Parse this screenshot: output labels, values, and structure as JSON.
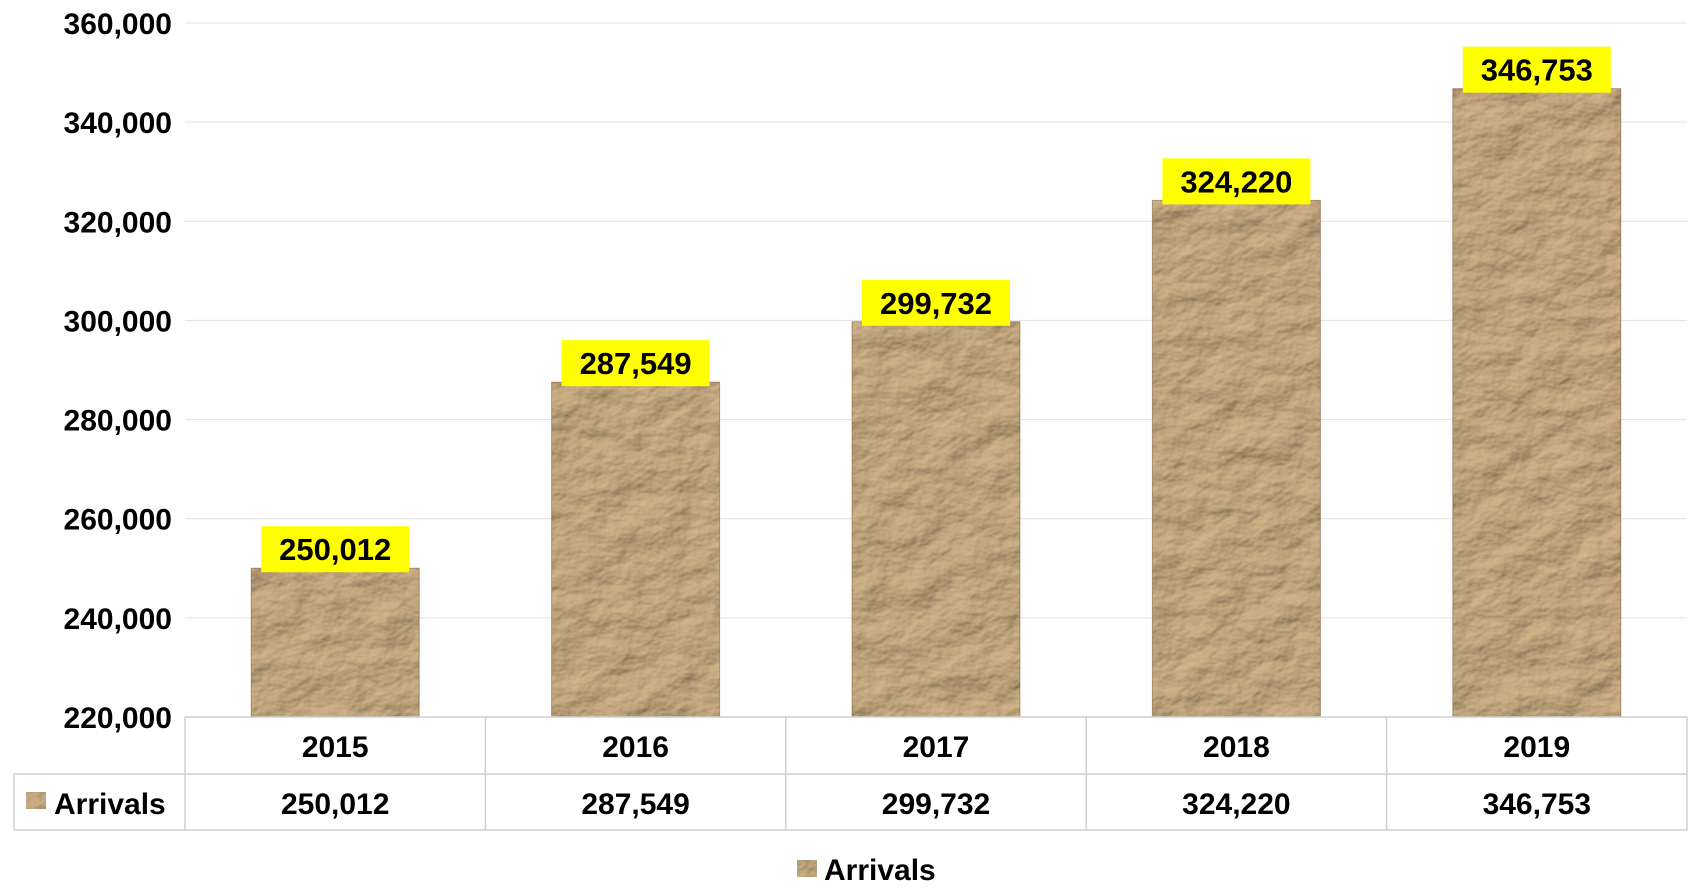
{
  "chart_data": {
    "type": "bar",
    "categories": [
      "2015",
      "2016",
      "2017",
      "2018",
      "2019"
    ],
    "series": [
      {
        "name": "Arrivals",
        "values": [
          250012,
          287549,
          299732,
          324220,
          346753
        ]
      }
    ],
    "value_labels": [
      "250,012",
      "287,549",
      "299,732",
      "324,220",
      "346,753"
    ],
    "y_tick_labels": [
      "220,000",
      "240,000",
      "260,000",
      "280,000",
      "300,000",
      "320,000",
      "340,000",
      "360,000"
    ],
    "ylim": [
      220000,
      360000
    ],
    "y_tick_step": 20000,
    "grid": true,
    "data_table": true,
    "legend_position": "bottom",
    "title": "",
    "xlabel": "",
    "ylabel": ""
  },
  "colors": {
    "bar_base": "#b08a60",
    "bar_light": "#d2b48a",
    "bar_dark": "#7a5a38",
    "label_bg": "#ffff00",
    "grid": "#e0e0e0",
    "table_border": "#cfcfcf"
  },
  "legend": {
    "label": "Arrivals",
    "icon": "crumpled-paper-swatch-icon"
  }
}
